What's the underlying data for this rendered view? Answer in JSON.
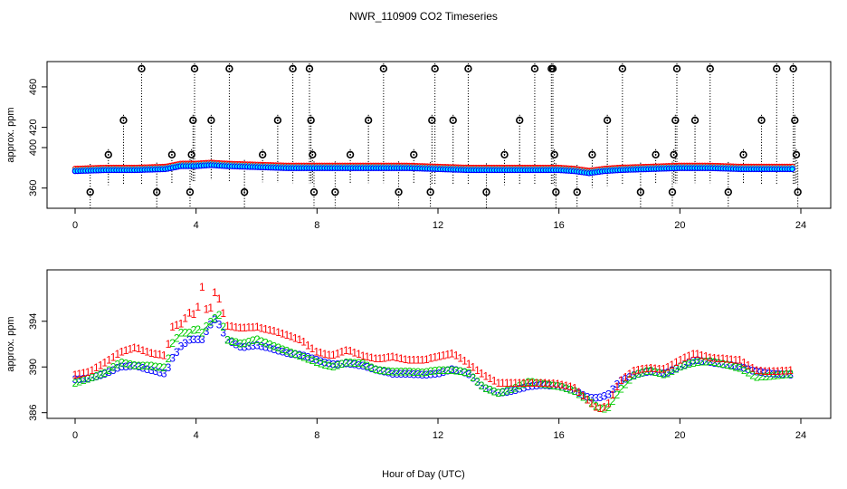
{
  "title": "NWR_110909  CO2 Timeseries",
  "xlabel": "Hour of Day (UTC)",
  "colors": {
    "series1": "#ff0000",
    "series2": "#00cc00",
    "series3": "#0000ff",
    "fill": "#00ffff",
    "spike": "#000000"
  },
  "chart_data": [
    {
      "type": "scatter",
      "panel": "top",
      "ylabel": "approx. ppm",
      "xlim": [
        0,
        24
      ],
      "ylim": [
        340,
        485
      ],
      "xticks": [
        "0",
        "4",
        "8",
        "12",
        "16",
        "20",
        "24"
      ],
      "yticks": [
        "360",
        "400",
        "420",
        "460"
      ],
      "baseline": {
        "x": [
          0,
          1,
          2,
          3,
          3.5,
          4,
          4.5,
          5,
          6,
          7,
          8,
          9,
          10,
          11,
          12,
          13,
          14,
          15,
          16,
          16.5,
          17,
          17.5,
          18,
          19,
          20,
          21,
          22,
          23,
          23.8
        ],
        "y": [
          378,
          379,
          379,
          380,
          383,
          383,
          384,
          383,
          382,
          381,
          381,
          381,
          381,
          381,
          380,
          379,
          379,
          379,
          379,
          378,
          376,
          378,
          379,
          380,
          381,
          381,
          380,
          380,
          380
        ]
      },
      "spikes": [
        {
          "x": 0.5,
          "y": 356
        },
        {
          "x": 1.1,
          "y": 393
        },
        {
          "x": 1.6,
          "y": 427
        },
        {
          "x": 2.2,
          "y": 478
        },
        {
          "x": 2.7,
          "y": 356
        },
        {
          "x": 3.2,
          "y": 393
        },
        {
          "x": 3.8,
          "y": 356
        },
        {
          "x": 3.85,
          "y": 393
        },
        {
          "x": 3.9,
          "y": 427
        },
        {
          "x": 3.95,
          "y": 478
        },
        {
          "x": 4.5,
          "y": 427
        },
        {
          "x": 5.1,
          "y": 478
        },
        {
          "x": 5.6,
          "y": 356
        },
        {
          "x": 6.2,
          "y": 393
        },
        {
          "x": 6.7,
          "y": 427
        },
        {
          "x": 7.2,
          "y": 478
        },
        {
          "x": 7.75,
          "y": 478
        },
        {
          "x": 7.8,
          "y": 427
        },
        {
          "x": 7.85,
          "y": 393
        },
        {
          "x": 7.9,
          "y": 356
        },
        {
          "x": 8.6,
          "y": 356
        },
        {
          "x": 9.1,
          "y": 393
        },
        {
          "x": 9.7,
          "y": 427
        },
        {
          "x": 10.2,
          "y": 478
        },
        {
          "x": 10.7,
          "y": 356
        },
        {
          "x": 11.2,
          "y": 393
        },
        {
          "x": 11.75,
          "y": 356
        },
        {
          "x": 11.8,
          "y": 427
        },
        {
          "x": 11.9,
          "y": 478
        },
        {
          "x": 12.5,
          "y": 427
        },
        {
          "x": 13.0,
          "y": 478
        },
        {
          "x": 13.6,
          "y": 356
        },
        {
          "x": 14.2,
          "y": 393
        },
        {
          "x": 14.7,
          "y": 427
        },
        {
          "x": 15.2,
          "y": 478
        },
        {
          "x": 15.75,
          "y": 478
        },
        {
          "x": 15.8,
          "y": 478
        },
        {
          "x": 15.85,
          "y": 393
        },
        {
          "x": 15.9,
          "y": 356
        },
        {
          "x": 16.6,
          "y": 356
        },
        {
          "x": 17.1,
          "y": 393
        },
        {
          "x": 17.6,
          "y": 427
        },
        {
          "x": 18.1,
          "y": 478
        },
        {
          "x": 18.7,
          "y": 356
        },
        {
          "x": 19.2,
          "y": 393
        },
        {
          "x": 19.75,
          "y": 356
        },
        {
          "x": 19.8,
          "y": 393
        },
        {
          "x": 19.85,
          "y": 427
        },
        {
          "x": 19.9,
          "y": 478
        },
        {
          "x": 20.5,
          "y": 427
        },
        {
          "x": 21.0,
          "y": 478
        },
        {
          "x": 21.6,
          "y": 356
        },
        {
          "x": 22.1,
          "y": 393
        },
        {
          "x": 22.7,
          "y": 427
        },
        {
          "x": 23.2,
          "y": 478
        },
        {
          "x": 23.75,
          "y": 478
        },
        {
          "x": 23.8,
          "y": 427
        },
        {
          "x": 23.85,
          "y": 393
        },
        {
          "x": 23.9,
          "y": 356
        }
      ]
    },
    {
      "type": "scatter",
      "panel": "bottom",
      "ylabel": "approx. ppm",
      "xlim": [
        0,
        24
      ],
      "ylim": [
        385.5,
        398.5
      ],
      "xticks": [
        "0",
        "4",
        "8",
        "12",
        "16",
        "20",
        "24"
      ],
      "yticks": [
        "386",
        "390",
        "394"
      ],
      "x": [
        0,
        0.5,
        1,
        1.5,
        2,
        2.5,
        3,
        3.2,
        3.5,
        3.8,
        4,
        4.2,
        4.4,
        4.6,
        4.8,
        5,
        5.5,
        6,
        6.5,
        7,
        7.5,
        8,
        8.5,
        9,
        9.5,
        10,
        10.5,
        11,
        11.5,
        12,
        12.5,
        13,
        13.5,
        14,
        14.5,
        15,
        15.5,
        16,
        16.5,
        17,
        17.3,
        17.6,
        18,
        18.5,
        19,
        19.5,
        20,
        20.5,
        21,
        21.5,
        22,
        22.5,
        23,
        23.7
      ],
      "series": [
        {
          "name": "1",
          "marker": "1",
          "values": [
            389.3,
            389.6,
            390.4,
            391.3,
            391.7,
            391.2,
            391.0,
            393.5,
            393.8,
            394.8,
            394.5,
            397.0,
            394.2,
            396.6,
            395.8,
            393.6,
            393.4,
            393.5,
            393.2,
            392.8,
            392.3,
            391.3,
            391.0,
            391.5,
            391.0,
            390.7,
            390.9,
            390.6,
            390.6,
            390.9,
            391.2,
            390.3,
            389.3,
            388.6,
            388.6,
            388.6,
            388.6,
            388.5,
            388.2,
            387.0,
            386.3,
            386.6,
            388.7,
            389.7,
            389.9,
            389.8,
            390.6,
            391.2,
            390.8,
            390.7,
            390.6,
            389.7,
            389.6,
            389.7
          ]
        },
        {
          "name": "2",
          "marker": "2",
          "values": [
            388.6,
            389.0,
            389.5,
            390.4,
            390.1,
            390.1,
            389.9,
            392.0,
            393.0,
            393.0,
            393.4,
            393.0,
            393.8,
            394.2,
            394.6,
            392.4,
            392.0,
            392.4,
            391.9,
            391.4,
            390.9,
            390.4,
            390.0,
            390.4,
            390.3,
            389.7,
            389.6,
            389.6,
            389.5,
            389.7,
            389.7,
            389.5,
            388.2,
            387.7,
            388.1,
            388.7,
            388.5,
            388.3,
            387.9,
            387.0,
            386.4,
            386.3,
            387.9,
            389.3,
            389.7,
            389.3,
            390.0,
            390.4,
            390.5,
            390.2,
            389.9,
            389.1,
            389.2,
            389.4
          ]
        },
        {
          "name": "3",
          "marker": "3",
          "values": [
            388.9,
            389.0,
            389.4,
            390.0,
            390.1,
            389.7,
            389.4,
            390.7,
            391.8,
            392.4,
            392.4,
            392.4,
            393.4,
            394.2,
            393.6,
            392.4,
            391.7,
            391.9,
            391.6,
            391.2,
            391.0,
            390.6,
            390.2,
            390.3,
            390.1,
            389.7,
            389.4,
            389.4,
            389.3,
            389.4,
            389.8,
            389.4,
            388.2,
            387.7,
            387.9,
            388.3,
            388.4,
            388.3,
            387.9,
            387.3,
            387.3,
            387.5,
            388.7,
            389.3,
            389.6,
            389.4,
            390.0,
            390.6,
            390.4,
            390.2,
            390.0,
            389.6,
            389.4,
            389.3
          ]
        }
      ]
    }
  ]
}
